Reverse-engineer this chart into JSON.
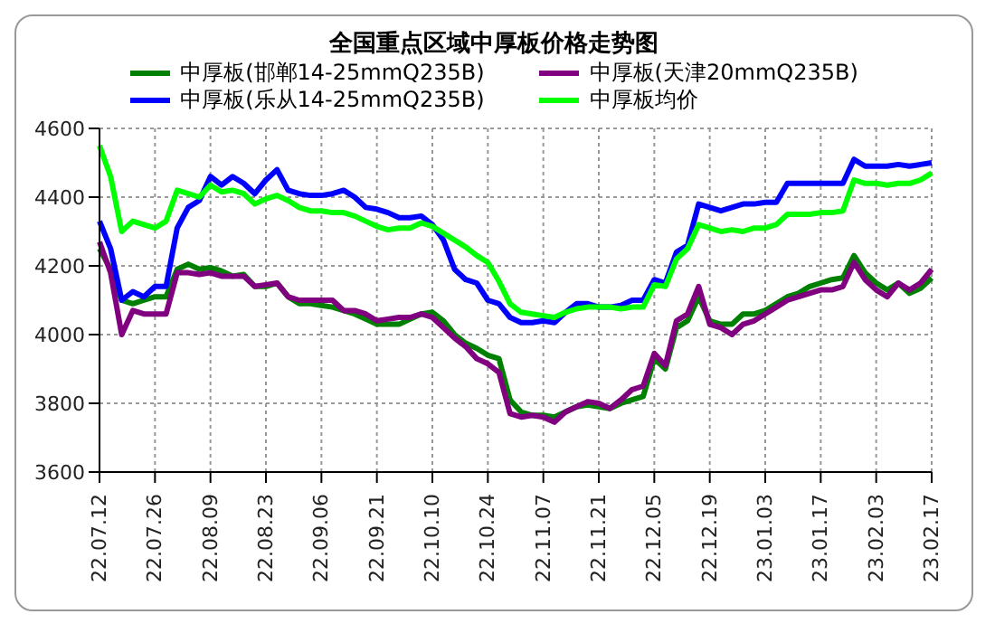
{
  "chart_data": {
    "type": "line",
    "title": "全国重点区域中厚板价格走势图",
    "categories": [
      "22.07.12",
      null,
      null,
      null,
      null,
      "22.07.26",
      null,
      null,
      null,
      null,
      "22.08.09",
      null,
      null,
      null,
      null,
      "22.08.23",
      null,
      null,
      null,
      null,
      "22.09.06",
      null,
      null,
      null,
      null,
      "22.09.21",
      null,
      null,
      null,
      null,
      "22.10.10",
      null,
      null,
      null,
      null,
      "22.10.24",
      null,
      null,
      null,
      null,
      "22.11.07",
      null,
      null,
      null,
      null,
      "22.11.21",
      null,
      null,
      null,
      null,
      "22.12.05",
      null,
      null,
      null,
      null,
      "22.12.19",
      null,
      null,
      null,
      null,
      "23.01.03",
      null,
      null,
      null,
      null,
      "23.01.17",
      null,
      null,
      null,
      null,
      "23.02.03",
      null,
      null,
      null,
      null,
      "23.02.17"
    ],
    "series": [
      {
        "name": "中厚板(邯郸14-25mmQ235B)",
        "color": "#008000",
        "values": [
          4250,
          4190,
          4100,
          4090,
          4100,
          4110,
          4110,
          4190,
          4205,
          4190,
          4195,
          4185,
          4170,
          4175,
          4140,
          4140,
          4150,
          4110,
          4090,
          4090,
          4085,
          4080,
          4070,
          4060,
          4045,
          4030,
          4030,
          4030,
          4045,
          4060,
          4065,
          4040,
          4000,
          3975,
          3960,
          3940,
          3930,
          3810,
          3775,
          3765,
          3765,
          3760,
          3775,
          3790,
          3795,
          3790,
          3785,
          3800,
          3810,
          3820,
          3930,
          3900,
          4020,
          4040,
          4110,
          4040,
          4030,
          4030,
          4060,
          4060,
          4070,
          4090,
          4110,
          4120,
          4140,
          4150,
          4160,
          4165,
          4230,
          4180,
          4150,
          4130,
          4150,
          4120,
          4135,
          4165
        ]
      },
      {
        "name": "中厚板(天津20mmQ235B)",
        "color": "#800080",
        "values": [
          4270,
          4180,
          4000,
          4070,
          4060,
          4060,
          4060,
          4180,
          4180,
          4175,
          4180,
          4170,
          4170,
          4170,
          4140,
          4145,
          4150,
          4110,
          4100,
          4100,
          4100,
          4100,
          4070,
          4070,
          4060,
          4040,
          4045,
          4050,
          4050,
          4060,
          4050,
          4020,
          3990,
          3965,
          3930,
          3915,
          3890,
          3770,
          3760,
          3765,
          3760,
          3745,
          3775,
          3790,
          3805,
          3800,
          3785,
          3810,
          3840,
          3850,
          3945,
          3910,
          4040,
          4060,
          4140,
          4030,
          4020,
          4000,
          4030,
          4040,
          4060,
          4080,
          4100,
          4110,
          4120,
          4130,
          4130,
          4140,
          4210,
          4160,
          4130,
          4110,
          4150,
          4130,
          4150,
          4190
        ]
      },
      {
        "name": "中厚板(乐从14-25mmQ235B)",
        "color": "#0000ff",
        "values": [
          4330,
          4250,
          4100,
          4125,
          4110,
          4140,
          4140,
          4310,
          4370,
          4390,
          4460,
          4435,
          4460,
          4440,
          4410,
          4450,
          4480,
          4420,
          4410,
          4405,
          4405,
          4410,
          4420,
          4400,
          4370,
          4365,
          4355,
          4340,
          4340,
          4345,
          4320,
          4275,
          4190,
          4160,
          4150,
          4100,
          4090,
          4050,
          4035,
          4035,
          4040,
          4035,
          4065,
          4090,
          4090,
          4080,
          4080,
          4085,
          4100,
          4100,
          4160,
          4150,
          4240,
          4260,
          4380,
          4370,
          4360,
          4370,
          4380,
          4380,
          4385,
          4385,
          4440,
          4440,
          4440,
          4440,
          4440,
          4440,
          4510,
          4490,
          4490,
          4490,
          4495,
          4490,
          4495,
          4500
        ]
      },
      {
        "name": "中厚板均价",
        "color": "#00ff00",
        "values": [
          4550,
          4460,
          4300,
          4330,
          4320,
          4310,
          4330,
          4420,
          4410,
          4400,
          4435,
          4415,
          4420,
          4410,
          4380,
          4395,
          4405,
          4390,
          4370,
          4360,
          4360,
          4355,
          4355,
          4345,
          4330,
          4315,
          4305,
          4310,
          4310,
          4325,
          4315,
          4295,
          4275,
          4255,
          4230,
          4210,
          4155,
          4090,
          4065,
          4060,
          4055,
          4050,
          4065,
          4075,
          4080,
          4080,
          4080,
          4075,
          4080,
          4080,
          4145,
          4140,
          4220,
          4250,
          4320,
          4310,
          4300,
          4305,
          4300,
          4310,
          4310,
          4320,
          4350,
          4350,
          4350,
          4355,
          4355,
          4360,
          4450,
          4440,
          4440,
          4435,
          4440,
          4440,
          4450,
          4470
        ]
      }
    ],
    "ylim": [
      3600,
      4600
    ],
    "yticks": [
      3600,
      3800,
      4000,
      4200,
      4400,
      4600
    ],
    "grid": true,
    "legend": "top",
    "marker": "none",
    "line_style": "solid"
  }
}
